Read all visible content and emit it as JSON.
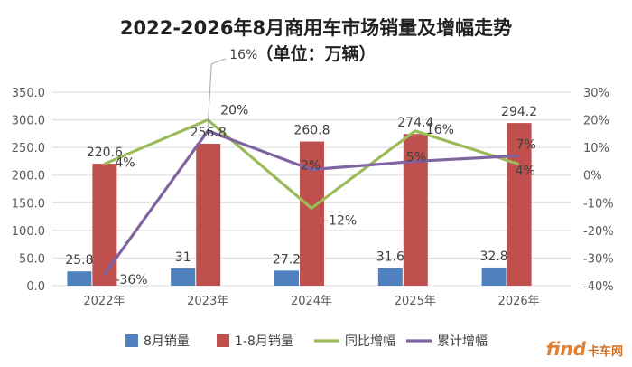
{
  "chart_data": {
    "type": "bar+line",
    "title_line1": "2022-2026年8月商用车市场销量及增幅走势",
    "title_line2": "（单位：万辆）",
    "categories": [
      "2022年",
      "2023年",
      "2024年",
      "2025年",
      "2026年"
    ],
    "bar_series": [
      {
        "name": "8月销量",
        "values": [
          25.8,
          31,
          27.2,
          31.6,
          32.8
        ],
        "labels": [
          "25.8",
          "31",
          "27.2",
          "31.6",
          "32.8"
        ],
        "color": "#4e81bd"
      },
      {
        "name": "1-8月销量",
        "values": [
          220.6,
          256.8,
          260.8,
          274.4,
          294.2
        ],
        "labels": [
          "220.6",
          "256.8",
          "260.8",
          "274.4",
          "294.2"
        ],
        "color": "#c0504d"
      }
    ],
    "line_series": [
      {
        "name": "同比增幅",
        "values": [
          4,
          20,
          -12,
          16,
          4
        ],
        "labels": [
          "4%",
          "20%",
          "-12%",
          "16%",
          "4%"
        ],
        "color": "#9bbb59"
      },
      {
        "name": "累计增幅",
        "values": [
          -36,
          16,
          2,
          5,
          7
        ],
        "labels": [
          "-36%",
          "16%",
          "2%",
          "5%",
          "7%"
        ],
        "color": "#8064a2"
      }
    ],
    "y_left": {
      "min": 0,
      "max": 350,
      "step": 50,
      "ticks": [
        "0.0",
        "50.0",
        "100.0",
        "150.0",
        "200.0",
        "250.0",
        "300.0",
        "350.0"
      ]
    },
    "y_right": {
      "min": -40,
      "max": 30,
      "step": 10,
      "ticks": [
        "-40%",
        "-30%",
        "-20%",
        "-10%",
        "0%",
        "10%",
        "20%",
        "30%"
      ]
    },
    "grid": true,
    "legend_position": "bottom"
  },
  "watermark": {
    "text": "find",
    "sub": "卡车网"
  }
}
